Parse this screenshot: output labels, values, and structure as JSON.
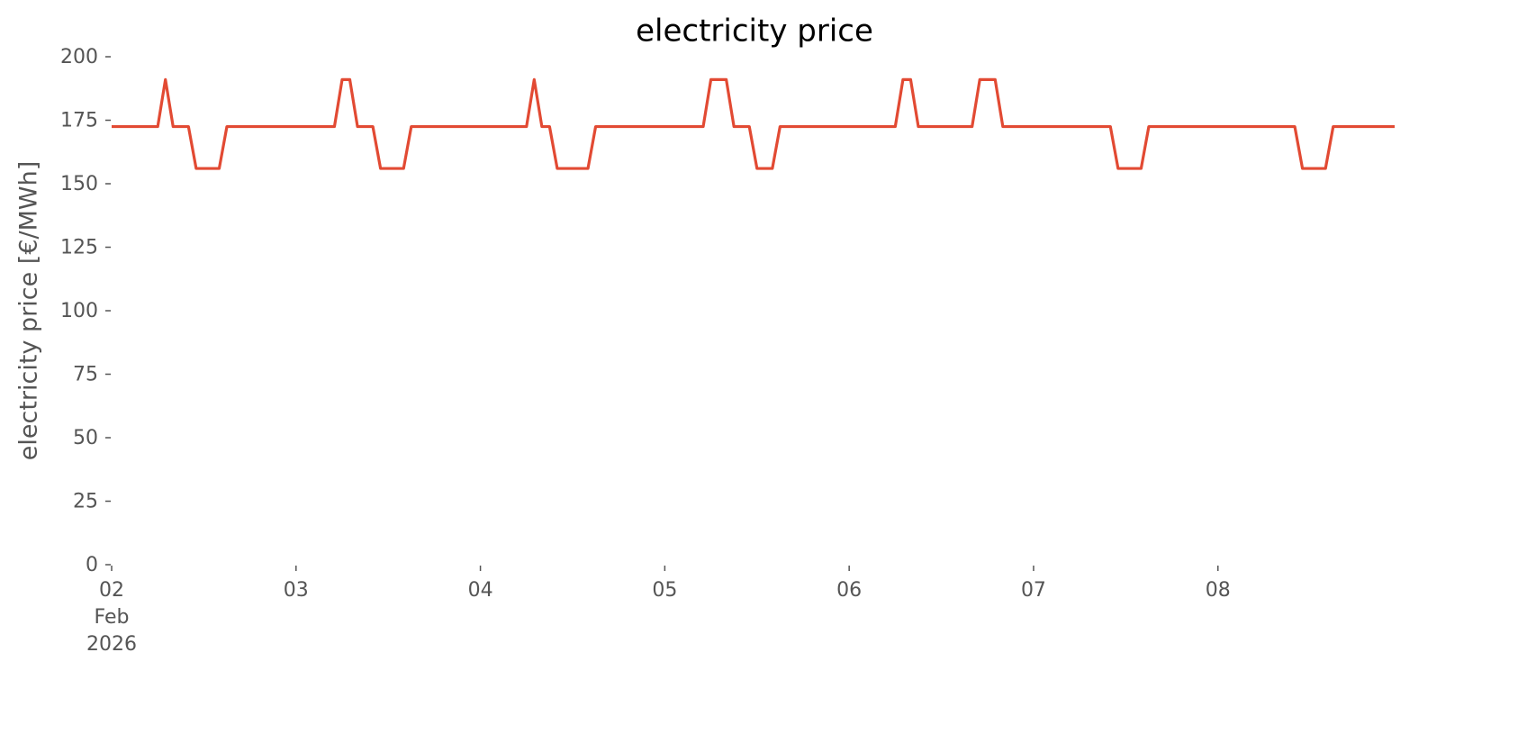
{
  "chart_data": {
    "type": "line",
    "title": "electricity price",
    "ylabel": "electricity price [€/MWh]",
    "x": [
      "2026-02-02 00:00",
      "2026-02-02 06:00",
      "2026-02-02 07:00",
      "2026-02-02 08:00",
      "2026-02-02 10:00",
      "2026-02-02 11:00",
      "2026-02-02 14:00",
      "2026-02-02 15:00",
      "2026-02-03 05:00",
      "2026-02-03 06:00",
      "2026-02-03 07:00",
      "2026-02-03 08:00",
      "2026-02-03 10:00",
      "2026-02-03 11:00",
      "2026-02-03 14:00",
      "2026-02-03 15:00",
      "2026-02-04 06:00",
      "2026-02-04 07:00",
      "2026-02-04 08:00",
      "2026-02-04 09:00",
      "2026-02-04 10:00",
      "2026-02-04 14:00",
      "2026-02-04 15:00",
      "2026-02-05 05:00",
      "2026-02-05 06:00",
      "2026-02-05 08:00",
      "2026-02-05 09:00",
      "2026-02-05 11:00",
      "2026-02-05 12:00",
      "2026-02-05 14:00",
      "2026-02-05 15:00",
      "2026-02-06 06:00",
      "2026-02-06 07:00",
      "2026-02-06 08:00",
      "2026-02-06 09:00",
      "2026-02-06 16:00",
      "2026-02-06 17:00",
      "2026-02-06 19:00",
      "2026-02-06 20:00",
      "2026-02-07 10:00",
      "2026-02-07 11:00",
      "2026-02-07 14:00",
      "2026-02-07 15:00",
      "2026-02-08 10:00",
      "2026-02-08 11:00",
      "2026-02-08 14:00",
      "2026-02-08 15:00",
      "2026-02-08 23:00"
    ],
    "values": [
      172.5,
      172.5,
      191,
      172.5,
      172.5,
      156,
      156,
      172.5,
      172.5,
      191,
      191,
      172.5,
      172.5,
      156,
      156,
      172.5,
      172.5,
      191,
      172.5,
      172.5,
      156,
      156,
      172.5,
      172.5,
      191,
      191,
      172.5,
      172.5,
      156,
      156,
      172.5,
      172.5,
      191,
      191,
      172.5,
      172.5,
      191,
      191,
      172.5,
      172.5,
      156,
      156,
      172.5,
      172.5,
      156,
      156,
      172.5,
      172.5
    ],
    "color": "#e24a33",
    "xlim": [
      "2026-02-02 00:00",
      "2026-02-08 23:00"
    ],
    "xticks": [
      {
        "value": "2026-02-02 00:00",
        "label": "02\nFeb\n2026"
      },
      {
        "value": "2026-02-03 00:00",
        "label": "03"
      },
      {
        "value": "2026-02-04 00:00",
        "label": "04"
      },
      {
        "value": "2026-02-05 00:00",
        "label": "05"
      },
      {
        "value": "2026-02-06 00:00",
        "label": "06"
      },
      {
        "value": "2026-02-07 00:00",
        "label": "07"
      },
      {
        "value": "2026-02-08 00:00",
        "label": "08"
      }
    ],
    "ylim": [
      0,
      200
    ],
    "yticks": [
      0,
      25,
      50,
      75,
      100,
      125,
      150,
      175,
      200
    ],
    "grid": false
  }
}
